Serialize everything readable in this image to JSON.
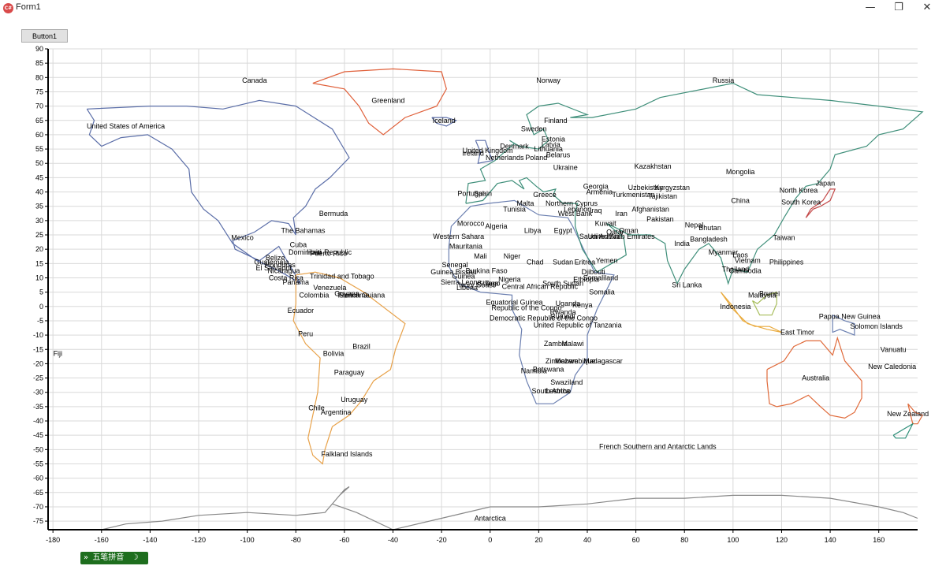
{
  "window": {
    "title": "Form1",
    "icon": "app-icon",
    "controls": {
      "minimize": "—",
      "restore": "❐",
      "close": "✕"
    }
  },
  "toolbar": {
    "button1_label": "Button1"
  },
  "ime": {
    "label": "五笔拼音",
    "arrow": "»",
    "moon": "☽",
    "dots": "‧‧"
  },
  "chart_data": {
    "type": "map",
    "title": "",
    "xlabel": "",
    "ylabel": "",
    "xlim": [
      -182,
      176
    ],
    "ylim": [
      -78,
      90
    ],
    "grid": true,
    "xticks": [
      -180,
      -160,
      -140,
      -120,
      -100,
      -80,
      -60,
      -40,
      -20,
      0,
      20,
      40,
      60,
      80,
      100,
      120,
      140,
      160
    ],
    "yticks": [
      90,
      85,
      80,
      75,
      70,
      65,
      60,
      55,
      50,
      45,
      40,
      35,
      30,
      25,
      20,
      15,
      10,
      5,
      0,
      -5,
      -10,
      -15,
      -20,
      -25,
      -30,
      -35,
      -40,
      -45,
      -50,
      -55,
      -60,
      -65,
      -70,
      -75
    ],
    "labels": [
      {
        "name": "Canada",
        "lon": -97,
        "lat": 79
      },
      {
        "name": "Greenland",
        "lon": -42,
        "lat": 72
      },
      {
        "name": "Norway",
        "lon": 24,
        "lat": 79
      },
      {
        "name": "Russia",
        "lon": 96,
        "lat": 79
      },
      {
        "name": "United States of America",
        "lon": -150,
        "lat": 63
      },
      {
        "name": "Iceland",
        "lon": -19,
        "lat": 65
      },
      {
        "name": "Finland",
        "lon": 27,
        "lat": 65
      },
      {
        "name": "Sweden",
        "lon": 18,
        "lat": 62
      },
      {
        "name": "Estonia",
        "lon": 26,
        "lat": 58.5
      },
      {
        "name": "Latvia",
        "lon": 25,
        "lat": 56.5
      },
      {
        "name": "Denmark",
        "lon": 10,
        "lat": 56
      },
      {
        "name": "Lithuania",
        "lon": 24,
        "lat": 55
      },
      {
        "name": "United Kingdom",
        "lon": -1,
        "lat": 54.5
      },
      {
        "name": "Ireland",
        "lon": -7,
        "lat": 53.5
      },
      {
        "name": "Belarus",
        "lon": 28,
        "lat": 53
      },
      {
        "name": "Netherlands",
        "lon": 6,
        "lat": 52
      },
      {
        "name": "Poland",
        "lon": 19,
        "lat": 52
      },
      {
        "name": "Ukraine",
        "lon": 31,
        "lat": 48.5
      },
      {
        "name": "Kazakhstan",
        "lon": 67,
        "lat": 49
      },
      {
        "name": "Mongolia",
        "lon": 103,
        "lat": 47
      },
      {
        "name": "Georgia",
        "lon": 43.5,
        "lat": 42
      },
      {
        "name": "Uzbekistan",
        "lon": 64,
        "lat": 41.5
      },
      {
        "name": "Kyrgyzstan",
        "lon": 75,
        "lat": 41.5
      },
      {
        "name": "Japan",
        "lon": 138,
        "lat": 43
      },
      {
        "name": "Armenia",
        "lon": 45,
        "lat": 40
      },
      {
        "name": "Tajikistan",
        "lon": 71,
        "lat": 38.5
      },
      {
        "name": "Turkmenistan",
        "lon": 59,
        "lat": 39
      },
      {
        "name": "North Korea",
        "lon": 127,
        "lat": 40.5
      },
      {
        "name": "Portugal",
        "lon": -8,
        "lat": 39.5
      },
      {
        "name": "Spain",
        "lon": -3,
        "lat": 39.5
      },
      {
        "name": "Greece",
        "lon": 22.5,
        "lat": 39
      },
      {
        "name": "China",
        "lon": 103,
        "lat": 37
      },
      {
        "name": "South Korea",
        "lon": 128,
        "lat": 36.5
      },
      {
        "name": "Malta",
        "lon": 14.5,
        "lat": 36
      },
      {
        "name": "Northern Cyprus",
        "lon": 33.5,
        "lat": 36
      },
      {
        "name": "Tunisia",
        "lon": 10,
        "lat": 34
      },
      {
        "name": "Lebanon",
        "lon": 36,
        "lat": 34
      },
      {
        "name": "Iraq",
        "lon": 43.5,
        "lat": 33.5
      },
      {
        "name": "West Bank",
        "lon": 35,
        "lat": 32.5
      },
      {
        "name": "Afghanistan",
        "lon": 66,
        "lat": 34
      },
      {
        "name": "Iran",
        "lon": 54,
        "lat": 32.5
      },
      {
        "name": "Pakistan",
        "lon": 70,
        "lat": 30.5
      },
      {
        "name": "Bermuda",
        "lon": -64.5,
        "lat": 32.5
      },
      {
        "name": "Morocco",
        "lon": -8,
        "lat": 29
      },
      {
        "name": "Algeria",
        "lon": 2.5,
        "lat": 28
      },
      {
        "name": "Nepal",
        "lon": 84,
        "lat": 28.5
      },
      {
        "name": "Bhutan",
        "lon": 90.5,
        "lat": 27.5
      },
      {
        "name": "Kuwait",
        "lon": 47.5,
        "lat": 29
      },
      {
        "name": "Libya",
        "lon": 17.5,
        "lat": 26.5
      },
      {
        "name": "Egypt",
        "lon": 30,
        "lat": 26.5
      },
      {
        "name": "The Bahamas",
        "lon": -77,
        "lat": 26.5
      },
      {
        "name": "Qatar",
        "lon": 51.5,
        "lat": 26
      },
      {
        "name": "Oman",
        "lon": 57,
        "lat": 26.5
      },
      {
        "name": "Western Sahara",
        "lon": -13,
        "lat": 24.5
      },
      {
        "name": "Saudi Arabia",
        "lon": 45,
        "lat": 24.5
      },
      {
        "name": "United Arab Emirates",
        "lon": 54,
        "lat": 24.5
      },
      {
        "name": "Bangladesh",
        "lon": 90,
        "lat": 23.5
      },
      {
        "name": "Taiwan",
        "lon": 121,
        "lat": 24
      },
      {
        "name": "Mexico",
        "lon": -102,
        "lat": 24
      },
      {
        "name": "India",
        "lon": 79,
        "lat": 22
      },
      {
        "name": "Mauritania",
        "lon": -10,
        "lat": 21
      },
      {
        "name": "Cuba",
        "lon": -79,
        "lat": 21.5
      },
      {
        "name": "Myanmar",
        "lon": 96,
        "lat": 19
      },
      {
        "name": "Dominican Republic",
        "lon": -70,
        "lat": 19
      },
      {
        "name": "Haiti",
        "lon": -72.5,
        "lat": 19
      },
      {
        "name": "Puerto Rico",
        "lon": -66.5,
        "lat": 18.5
      },
      {
        "name": "Mali",
        "lon": -4,
        "lat": 17.5
      },
      {
        "name": "Niger",
        "lon": 9,
        "lat": 17.5
      },
      {
        "name": "Laos",
        "lon": 103,
        "lat": 18
      },
      {
        "name": "Belize",
        "lon": -88.5,
        "lat": 17
      },
      {
        "name": "Guatemala",
        "lon": -90,
        "lat": 15.5
      },
      {
        "name": "Vietnam",
        "lon": 106,
        "lat": 16
      },
      {
        "name": "Philippines",
        "lon": 122,
        "lat": 15.5
      },
      {
        "name": "Chad",
        "lon": 18.5,
        "lat": 15.5
      },
      {
        "name": "Sudan",
        "lon": 30,
        "lat": 15.5
      },
      {
        "name": "Eritrea",
        "lon": 39,
        "lat": 15.5
      },
      {
        "name": "Yemen",
        "lon": 48,
        "lat": 16
      },
      {
        "name": "Honduras",
        "lon": -86.5,
        "lat": 14.5
      },
      {
        "name": "El Salvador",
        "lon": -89,
        "lat": 13.5
      },
      {
        "name": "Senegal",
        "lon": -14.5,
        "lat": 14.5
      },
      {
        "name": "Thailand",
        "lon": 101,
        "lat": 13
      },
      {
        "name": "Cambodia",
        "lon": 105,
        "lat": 12.5
      },
      {
        "name": "Nicaragua",
        "lon": -85,
        "lat": 12.5
      },
      {
        "name": "Guinea Bissau",
        "lon": -15,
        "lat": 12
      },
      {
        "name": "Burkina Faso",
        "lon": -1.5,
        "lat": 12.5
      },
      {
        "name": "Djibouti",
        "lon": 42.5,
        "lat": 12
      },
      {
        "name": "Trinidad and Tobago",
        "lon": -61,
        "lat": 10.5
      },
      {
        "name": "Costa Rica",
        "lon": -84,
        "lat": 10
      },
      {
        "name": "Nigeria",
        "lon": 8,
        "lat": 9.5
      },
      {
        "name": "Ethiopia",
        "lon": 39.5,
        "lat": 9.5
      },
      {
        "name": "Somaliland",
        "lon": 45.5,
        "lat": 10
      },
      {
        "name": "Guinea",
        "lon": -11,
        "lat": 10.5
      },
      {
        "name": "Panama",
        "lon": -80,
        "lat": 8.5
      },
      {
        "name": "Sierra Leone",
        "lon": -12,
        "lat": 8.5
      },
      {
        "name": "Central African Republic",
        "lon": 20.5,
        "lat": 7
      },
      {
        "name": "South Sudan",
        "lon": 30,
        "lat": 8
      },
      {
        "name": "Ivory Coast",
        "lon": -5.5,
        "lat": 7.5
      },
      {
        "name": "Ghana",
        "lon": -1,
        "lat": 8
      },
      {
        "name": "Togo",
        "lon": 1,
        "lat": 8
      },
      {
        "name": "Venezuela",
        "lon": -66,
        "lat": 6.5
      },
      {
        "name": "Liberia",
        "lon": -9.5,
        "lat": 6.5
      },
      {
        "name": "Sri Lanka",
        "lon": 81,
        "lat": 7.5
      },
      {
        "name": "Somalia",
        "lon": 46,
        "lat": 5
      },
      {
        "name": "Colombia",
        "lon": -72.5,
        "lat": 4
      },
      {
        "name": "Guyana",
        "lon": -59,
        "lat": 4.5
      },
      {
        "name": "Suriname",
        "lon": -56,
        "lat": 4
      },
      {
        "name": "French Guiana",
        "lon": -53,
        "lat": 4
      },
      {
        "name": "Malaysia",
        "lon": 112,
        "lat": 4
      },
      {
        "name": "Brunei",
        "lon": 115,
        "lat": 4.5
      },
      {
        "name": "Equatorial Guinea",
        "lon": 10,
        "lat": 1.5
      },
      {
        "name": "Uganda",
        "lon": 32,
        "lat": 1
      },
      {
        "name": "Kenya",
        "lon": 38,
        "lat": 0.5
      },
      {
        "name": "Indonesia",
        "lon": 101,
        "lat": 0
      },
      {
        "name": "Republic of the Congo",
        "lon": 15,
        "lat": -0.5
      },
      {
        "name": "Rwanda",
        "lon": 30,
        "lat": -2
      },
      {
        "name": "Burundi",
        "lon": 30,
        "lat": -3.5
      },
      {
        "name": "Ecuador",
        "lon": -78,
        "lat": -1.5
      },
      {
        "name": "Papua New Guinea",
        "lon": 148,
        "lat": -3.5
      },
      {
        "name": "Democratic Republic of the Congo",
        "lon": 22,
        "lat": -4
      },
      {
        "name": "United Republic of Tanzania",
        "lon": 36,
        "lat": -6.5
      },
      {
        "name": "Solomon Islands",
        "lon": 159,
        "lat": -7
      },
      {
        "name": "Peru",
        "lon": -76,
        "lat": -9.5
      },
      {
        "name": "East Timor",
        "lon": 126.5,
        "lat": -9
      },
      {
        "name": "Fiji",
        "lon": -178,
        "lat": -16.5
      },
      {
        "name": "Zambia",
        "lon": 27,
        "lat": -13
      },
      {
        "name": "Malawi",
        "lon": 34,
        "lat": -13
      },
      {
        "name": "Brazil",
        "lon": -53,
        "lat": -14
      },
      {
        "name": "Vanuatu",
        "lon": 166,
        "lat": -15
      },
      {
        "name": "Bolivia",
        "lon": -64.5,
        "lat": -16.5
      },
      {
        "name": "Zimbabwe",
        "lon": 29.5,
        "lat": -19
      },
      {
        "name": "Mozambique",
        "lon": 35,
        "lat": -19
      },
      {
        "name": "Madagascar",
        "lon": 46.5,
        "lat": -19
      },
      {
        "name": "New Caledonia",
        "lon": 165.5,
        "lat": -21
      },
      {
        "name": "Botswana",
        "lon": 24,
        "lat": -22
      },
      {
        "name": "Namibia",
        "lon": 18,
        "lat": -22.5
      },
      {
        "name": "Paraguay",
        "lon": -58,
        "lat": -23
      },
      {
        "name": "Australia",
        "lon": 134,
        "lat": -25
      },
      {
        "name": "Swaziland",
        "lon": 31.5,
        "lat": -26.5
      },
      {
        "name": "Lesotho",
        "lon": 28,
        "lat": -29.5
      },
      {
        "name": "South Africa",
        "lon": 25,
        "lat": -29.5
      },
      {
        "name": "Uruguay",
        "lon": -56,
        "lat": -32.5
      },
      {
        "name": "Chile",
        "lon": -71.5,
        "lat": -35.5
      },
      {
        "name": "Argentina",
        "lon": -63.5,
        "lat": -37
      },
      {
        "name": "New Zealand",
        "lon": 172,
        "lat": -37.5
      },
      {
        "name": "French Southern and Antarctic Lands",
        "lon": 69,
        "lat": -49
      },
      {
        "name": "Falkland Islands",
        "lon": -59,
        "lat": -51.5
      },
      {
        "name": "Antarctica",
        "lon": 0,
        "lat": -74
      }
    ]
  }
}
